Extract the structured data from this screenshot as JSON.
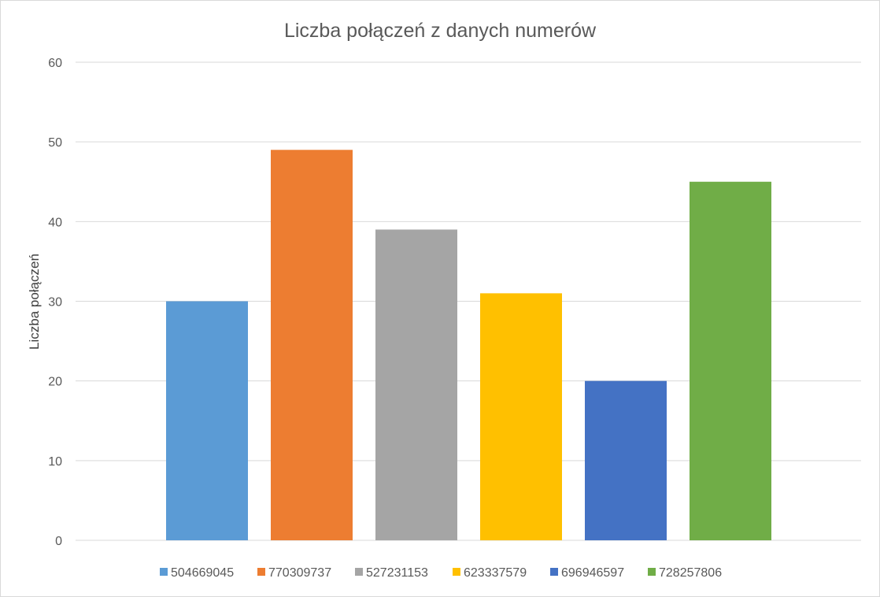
{
  "chart_data": {
    "type": "bar",
    "title": "Liczba połączeń z danych numerów",
    "xlabel": "",
    "ylabel": "Liczba połączeń",
    "ylim": [
      0,
      60
    ],
    "yticks": [
      0,
      10,
      20,
      30,
      40,
      50,
      60
    ],
    "grid": true,
    "legend_position": "bottom",
    "series": [
      {
        "name": "504669045",
        "values": [
          30
        ],
        "color": "#5B9BD5"
      },
      {
        "name": "770309737",
        "values": [
          49
        ],
        "color": "#ED7D31"
      },
      {
        "name": "527231153",
        "values": [
          39
        ],
        "color": "#A5A5A5"
      },
      {
        "name": "623337579",
        "values": [
          31
        ],
        "color": "#FFC000"
      },
      {
        "name": "696946597",
        "values": [
          20
        ],
        "color": "#4472C4"
      },
      {
        "name": "728257806",
        "values": [
          45
        ],
        "color": "#70AD47"
      }
    ]
  }
}
